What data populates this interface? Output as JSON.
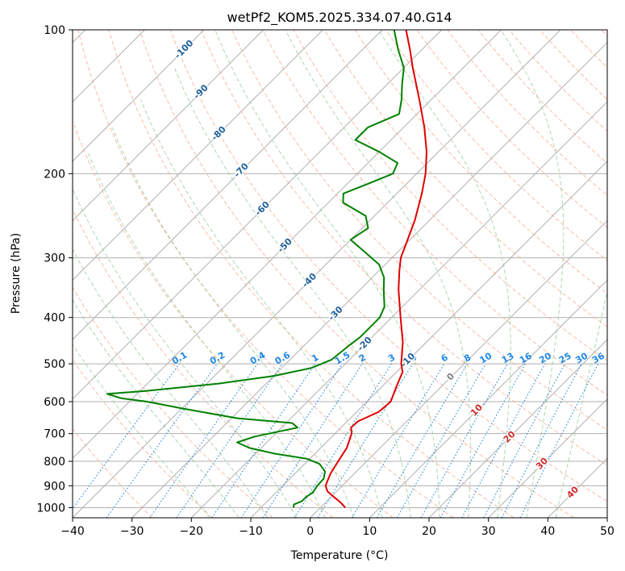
{
  "chart_data": {
    "type": "line",
    "subtype": "skew-t log-p diagram",
    "title": "wetPf2_KOM5.2025.334.07.40.G14",
    "xlabel": "Temperature (°C)",
    "ylabel": "Pressure (hPa)",
    "xlim": [
      -40,
      50
    ],
    "ylim": [
      1050,
      100
    ],
    "y_scale": "log",
    "grid": true,
    "x_ticks": [
      -40,
      -30,
      -20,
      -10,
      0,
      10,
      20,
      30,
      40,
      50
    ],
    "y_ticks": [
      100,
      200,
      300,
      400,
      500,
      600,
      700,
      800,
      900,
      1000
    ],
    "isotherm_labels": [
      "-100",
      "-90",
      "-80",
      "-70",
      "-60",
      "-50",
      "-40",
      "-30",
      "-20",
      "-10",
      "0",
      "10",
      "20",
      "30",
      "40"
    ],
    "mixing_ratio_labels": [
      "0.1",
      "0.2",
      "0.4",
      "0.6",
      "1",
      "1.5",
      "2",
      "3",
      "4",
      "6",
      "8",
      "10",
      "13",
      "16",
      "20",
      "25",
      "30",
      "36"
    ],
    "colors": {
      "temperature": "#e00000",
      "dewpoint": "#008000",
      "isotherm_label_cold": "#1f5f99",
      "isotherm_label_zero": "#808080",
      "isotherm_label_warm": "#cc2a2a",
      "mixing_ratio": "#1e88e5",
      "dry_adiabat": "#f4a58a",
      "moist_adiabat": "#9acd9a",
      "grid": "#b0b0b0"
    },
    "series": [
      {
        "name": "Temperature",
        "points": [
          {
            "p": 1000,
            "t": 4.2
          },
          {
            "p": 975,
            "t": 2.5
          },
          {
            "p": 950,
            "t": 0.5
          },
          {
            "p": 925,
            "t": -1.5
          },
          {
            "p": 900,
            "t": -2.8
          },
          {
            "p": 850,
            "t": -4.0
          },
          {
            "p": 800,
            "t": -4.8
          },
          {
            "p": 750,
            "t": -5.6
          },
          {
            "p": 700,
            "t": -7.2
          },
          {
            "p": 680,
            "t": -8.3
          },
          {
            "p": 660,
            "t": -8.2
          },
          {
            "p": 630,
            "t": -6.3
          },
          {
            "p": 600,
            "t": -6.0
          },
          {
            "p": 560,
            "t": -7.5
          },
          {
            "p": 520,
            "t": -9.0
          },
          {
            "p": 500,
            "t": -10.6
          },
          {
            "p": 450,
            "t": -14.0
          },
          {
            "p": 400,
            "t": -18.5
          },
          {
            "p": 350,
            "t": -23.5
          },
          {
            "p": 320,
            "t": -26.5
          },
          {
            "p": 300,
            "t": -28.5
          },
          {
            "p": 280,
            "t": -30.0
          },
          {
            "p": 250,
            "t": -32.5
          },
          {
            "p": 220,
            "t": -35.8
          },
          {
            "p": 200,
            "t": -38.5
          },
          {
            "p": 180,
            "t": -42.0
          },
          {
            "p": 160,
            "t": -46.5
          },
          {
            "p": 140,
            "t": -52.0
          },
          {
            "p": 120,
            "t": -58.5
          },
          {
            "p": 110,
            "t": -62.0
          },
          {
            "p": 100,
            "t": -66.0
          }
        ]
      },
      {
        "name": "Dewpoint",
        "points": [
          {
            "p": 1000,
            "t": -4.5
          },
          {
            "p": 985,
            "t": -5.0
          },
          {
            "p": 970,
            "t": -4.2
          },
          {
            "p": 950,
            "t": -4.2
          },
          {
            "p": 930,
            "t": -3.8
          },
          {
            "p": 900,
            "t": -4.2
          },
          {
            "p": 870,
            "t": -4.3
          },
          {
            "p": 840,
            "t": -5.3
          },
          {
            "p": 810,
            "t": -7.5
          },
          {
            "p": 790,
            "t": -10.5
          },
          {
            "p": 770,
            "t": -17.0
          },
          {
            "p": 750,
            "t": -22.0
          },
          {
            "p": 730,
            "t": -25.0
          },
          {
            "p": 710,
            "t": -23.0
          },
          {
            "p": 680,
            "t": -17.3
          },
          {
            "p": 665,
            "t": -19.0
          },
          {
            "p": 650,
            "t": -29.0
          },
          {
            "p": 620,
            "t": -40.0
          },
          {
            "p": 600,
            "t": -47.0
          },
          {
            "p": 590,
            "t": -52.0
          },
          {
            "p": 578,
            "t": -55.0
          },
          {
            "p": 570,
            "t": -49.0
          },
          {
            "p": 550,
            "t": -38.0
          },
          {
            "p": 530,
            "t": -30.0
          },
          {
            "p": 510,
            "t": -25.0
          },
          {
            "p": 490,
            "t": -23.0
          },
          {
            "p": 460,
            "t": -22.5
          },
          {
            "p": 440,
            "t": -22.0
          },
          {
            "p": 420,
            "t": -22.0
          },
          {
            "p": 400,
            "t": -22.0
          },
          {
            "p": 380,
            "t": -23.0
          },
          {
            "p": 350,
            "t": -26.0
          },
          {
            "p": 330,
            "t": -28.0
          },
          {
            "p": 310,
            "t": -31.0
          },
          {
            "p": 290,
            "t": -36.0
          },
          {
            "p": 275,
            "t": -40.0
          },
          {
            "p": 260,
            "t": -39.0
          },
          {
            "p": 245,
            "t": -41.5
          },
          {
            "p": 230,
            "t": -47.5
          },
          {
            "p": 220,
            "t": -49.0
          },
          {
            "p": 210,
            "t": -46.5
          },
          {
            "p": 200,
            "t": -44.0
          },
          {
            "p": 190,
            "t": -45.0
          },
          {
            "p": 180,
            "t": -50.0
          },
          {
            "p": 170,
            "t": -56.0
          },
          {
            "p": 160,
            "t": -56.0
          },
          {
            "p": 150,
            "t": -53.0
          },
          {
            "p": 140,
            "t": -55.0
          },
          {
            "p": 130,
            "t": -57.5
          },
          {
            "p": 120,
            "t": -60.0
          },
          {
            "p": 110,
            "t": -64.0
          },
          {
            "p": 100,
            "t": -68.0
          }
        ]
      }
    ]
  }
}
